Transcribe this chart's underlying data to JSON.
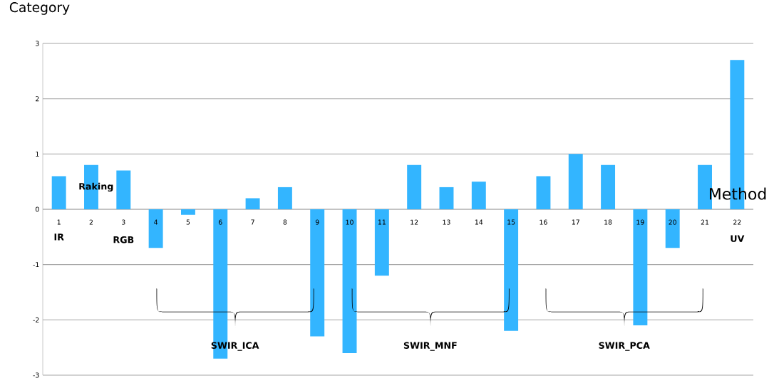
{
  "chart_data": {
    "type": "bar",
    "title": "Category",
    "xlabel": "Method",
    "categories": [
      "1",
      "2",
      "3",
      "4",
      "5",
      "6",
      "7",
      "8",
      "9",
      "10",
      "11",
      "12",
      "13",
      "14",
      "15",
      "16",
      "17",
      "18",
      "19",
      "20",
      "21",
      "22"
    ],
    "values": [
      0.6,
      0.8,
      0.7,
      -0.7,
      -0.1,
      -2.7,
      0.2,
      0.4,
      -2.3,
      -2.6,
      -1.2,
      0.8,
      0.4,
      0.5,
      -2.2,
      0.6,
      1.0,
      0.8,
      -2.1,
      -0.7,
      0.8,
      2.7
    ],
    "color": "#33b5ff",
    "ylim": [
      -3,
      3
    ],
    "yticks": [
      -3,
      -2,
      -1,
      0,
      1,
      2,
      3
    ],
    "grid": "y",
    "annotations": [
      "IR",
      "Raking",
      "RGB",
      "UV",
      "SWIR_ICA",
      "SWIR_MNF",
      "SWIR_PCA"
    ]
  }
}
